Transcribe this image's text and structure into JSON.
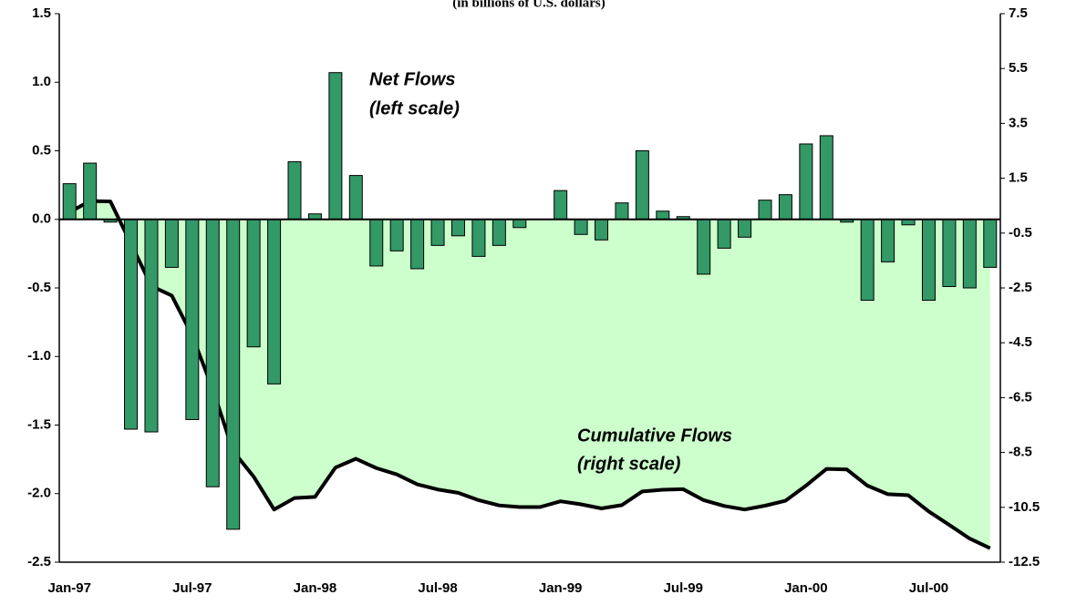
{
  "chart_data": {
    "type": "combo",
    "title": "(in billions of U.S. dollars)",
    "categories": [
      "Jan-97",
      null,
      null,
      null,
      null,
      null,
      "Jul-97",
      null,
      null,
      null,
      null,
      null,
      "Jan-98",
      null,
      null,
      null,
      null,
      null,
      "Jul-98",
      null,
      null,
      null,
      null,
      null,
      "Jan-99",
      null,
      null,
      null,
      null,
      null,
      "Jul-99",
      null,
      null,
      null,
      null,
      null,
      "Jan-00",
      null,
      null,
      null,
      null,
      null,
      "Jul-00",
      null,
      null,
      null
    ],
    "series": [
      {
        "type": "bar",
        "color": "#339966",
        "values": [
          0.26,
          0.41,
          -0.02,
          -1.53,
          -1.55,
          -0.35,
          -1.46,
          -1.95,
          -2.26,
          -0.93,
          -1.2,
          0.42,
          0.04,
          1.07,
          0.32,
          -0.34,
          -0.23,
          -0.36,
          -0.19,
          -0.12,
          -0.27,
          -0.19,
          -0.06,
          0,
          0.21,
          -0.11,
          -0.15,
          0.12,
          0.5,
          0.06,
          0.02,
          -0.4,
          -0.21,
          -0.13,
          0.14,
          0.18,
          0.55,
          0.61,
          -0.02,
          -0.59,
          -0.31,
          -0.04,
          -0.59,
          -0.49,
          -0.5,
          -0.35
        ]
      },
      {
        "type": "area",
        "axis": "y2",
        "color": "#000000",
        "fill": "#ccffcc",
        "values": [
          0.26,
          0.67,
          0.65,
          -0.88,
          -2.43,
          -2.78,
          -4.24,
          -6.19,
          -8.45,
          -9.38,
          -10.58,
          -10.16,
          -10.12,
          -9.05,
          -8.73,
          -9.07,
          -9.3,
          -9.66,
          -9.85,
          -9.97,
          -10.24,
          -10.43,
          -10.49,
          -10.49,
          -10.28,
          -10.39,
          -10.54,
          -10.42,
          -9.92,
          -9.86,
          -9.84,
          -10.24,
          -10.45,
          -10.58,
          -10.44,
          -10.26,
          -9.71,
          -9.1,
          -9.12,
          -9.71,
          -10.02,
          -10.06,
          -10.65,
          -11.14,
          -11.64,
          -11.99
        ]
      }
    ],
    "ylim": [
      -2.5,
      1.5
    ],
    "yticks": [
      -2.5,
      {
        "value": -2,
        "label": "-2.0"
      },
      -1.5,
      {
        "value": -1,
        "label": "-1.0"
      },
      -0.5,
      {
        "value": 0,
        "label": "0.0"
      },
      0.5,
      {
        "value": 1,
        "label": "1.0"
      },
      1.5
    ],
    "y2lim": [
      -12.5,
      7.5
    ],
    "y2ticks": [
      -12.5,
      -10.5,
      -8.5,
      -6.5,
      -4.5,
      -2.5,
      -0.5,
      1.5,
      3.5,
      5.5,
      7.5
    ],
    "annotations": [
      "Net Flows",
      "(left scale)",
      "Cumulative Flows",
      "(right scale)"
    ]
  }
}
